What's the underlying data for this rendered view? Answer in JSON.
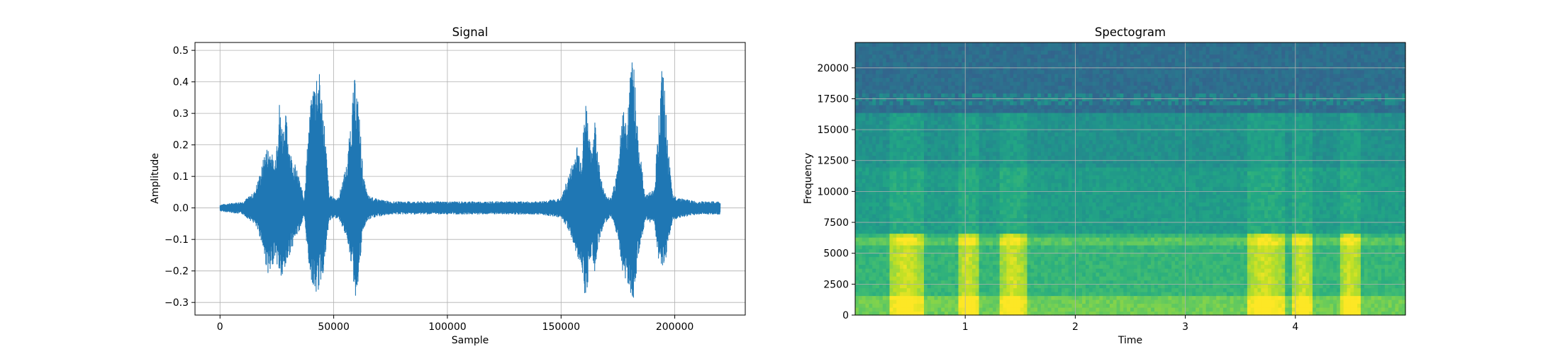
{
  "chart_data": [
    {
      "type": "line",
      "title": "Signal",
      "xlabel": "Sample",
      "ylabel": "Amplitude",
      "xlim": [
        -11000,
        231000
      ],
      "ylim": [
        -0.34,
        0.525
      ],
      "xticks": [
        0,
        50000,
        100000,
        150000,
        200000
      ],
      "xtick_labels": [
        "0",
        "50000",
        "100000",
        "150000",
        "200000"
      ],
      "yticks": [
        -0.3,
        -0.2,
        -0.1,
        0.0,
        0.1,
        0.2,
        0.3,
        0.4,
        0.5
      ],
      "ytick_labels": [
        "−0.3",
        "−0.2",
        "−0.1",
        "0.0",
        "0.1",
        "0.2",
        "0.3",
        "0.4",
        "0.5"
      ],
      "grid": true,
      "color": "#1f77b4",
      "series": [
        {
          "x": [
            0,
            10000,
            15000,
            18000,
            20000,
            22000,
            24000,
            26000,
            27500,
            29000,
            31000,
            33000,
            35000,
            37000,
            39000,
            41000,
            42500,
            43500,
            44500,
            46000,
            48000,
            52000,
            56000,
            58000,
            59500,
            60500,
            61500,
            63000,
            65000,
            68000,
            75000,
            100000,
            140000,
            150000,
            154000,
            157000,
            159000,
            161000,
            163000,
            165000,
            167000,
            169000,
            172000,
            175000,
            177000,
            179000,
            180500,
            182000,
            184000,
            187000,
            191000,
            193000,
            194500,
            195500,
            197000,
            199000,
            203000,
            210000,
            220000
          ],
          "upper": [
            0.01,
            0.02,
            0.05,
            0.12,
            0.19,
            0.2,
            0.14,
            0.35,
            0.26,
            0.3,
            0.18,
            0.14,
            0.09,
            0.03,
            0.27,
            0.4,
            0.45,
            0.44,
            0.39,
            0.27,
            0.04,
            0.03,
            0.15,
            0.33,
            0.43,
            0.36,
            0.28,
            0.1,
            0.04,
            0.03,
            0.02,
            0.02,
            0.02,
            0.03,
            0.12,
            0.2,
            0.17,
            0.36,
            0.18,
            0.29,
            0.12,
            0.05,
            0.03,
            0.13,
            0.34,
            0.26,
            0.44,
            0.49,
            0.22,
            0.04,
            0.06,
            0.3,
            0.46,
            0.38,
            0.2,
            0.04,
            0.03,
            0.02,
            0.02
          ],
          "lower": [
            -0.01,
            -0.02,
            -0.05,
            -0.1,
            -0.18,
            -0.23,
            -0.15,
            -0.21,
            -0.24,
            -0.19,
            -0.14,
            -0.1,
            -0.07,
            -0.03,
            -0.18,
            -0.26,
            -0.28,
            -0.26,
            -0.23,
            -0.19,
            -0.04,
            -0.03,
            -0.1,
            -0.19,
            -0.29,
            -0.25,
            -0.19,
            -0.07,
            -0.04,
            -0.03,
            -0.02,
            -0.02,
            -0.02,
            -0.03,
            -0.08,
            -0.16,
            -0.18,
            -0.31,
            -0.15,
            -0.21,
            -0.1,
            -0.05,
            -0.03,
            -0.1,
            -0.2,
            -0.24,
            -0.27,
            -0.29,
            -0.16,
            -0.04,
            -0.05,
            -0.17,
            -0.2,
            -0.21,
            -0.12,
            -0.04,
            -0.03,
            -0.02,
            -0.02
          ]
        }
      ]
    },
    {
      "type": "heatmap",
      "title": "Spectogram",
      "xlabel": "Time",
      "ylabel": "Frequency",
      "xlim": [
        0,
        5.0
      ],
      "ylim": [
        0,
        22050
      ],
      "xticks": [
        1,
        2,
        3,
        4
      ],
      "xtick_labels": [
        "1",
        "2",
        "3",
        "4"
      ],
      "yticks": [
        0,
        2500,
        5000,
        7500,
        10000,
        12500,
        15000,
        17500,
        20000
      ],
      "ytick_labels": [
        "0",
        "2500",
        "5000",
        "7500",
        "10000",
        "12500",
        "15000",
        "17500",
        "20000"
      ],
      "grid": true,
      "colormap": "viridis",
      "bursts": [
        {
          "start": 0.3,
          "end": 0.62
        },
        {
          "start": 0.93,
          "end": 1.12
        },
        {
          "start": 1.32,
          "end": 1.55
        },
        {
          "start": 3.55,
          "end": 3.9
        },
        {
          "start": 3.97,
          "end": 4.17
        },
        {
          "start": 4.4,
          "end": 4.6
        }
      ]
    }
  ]
}
